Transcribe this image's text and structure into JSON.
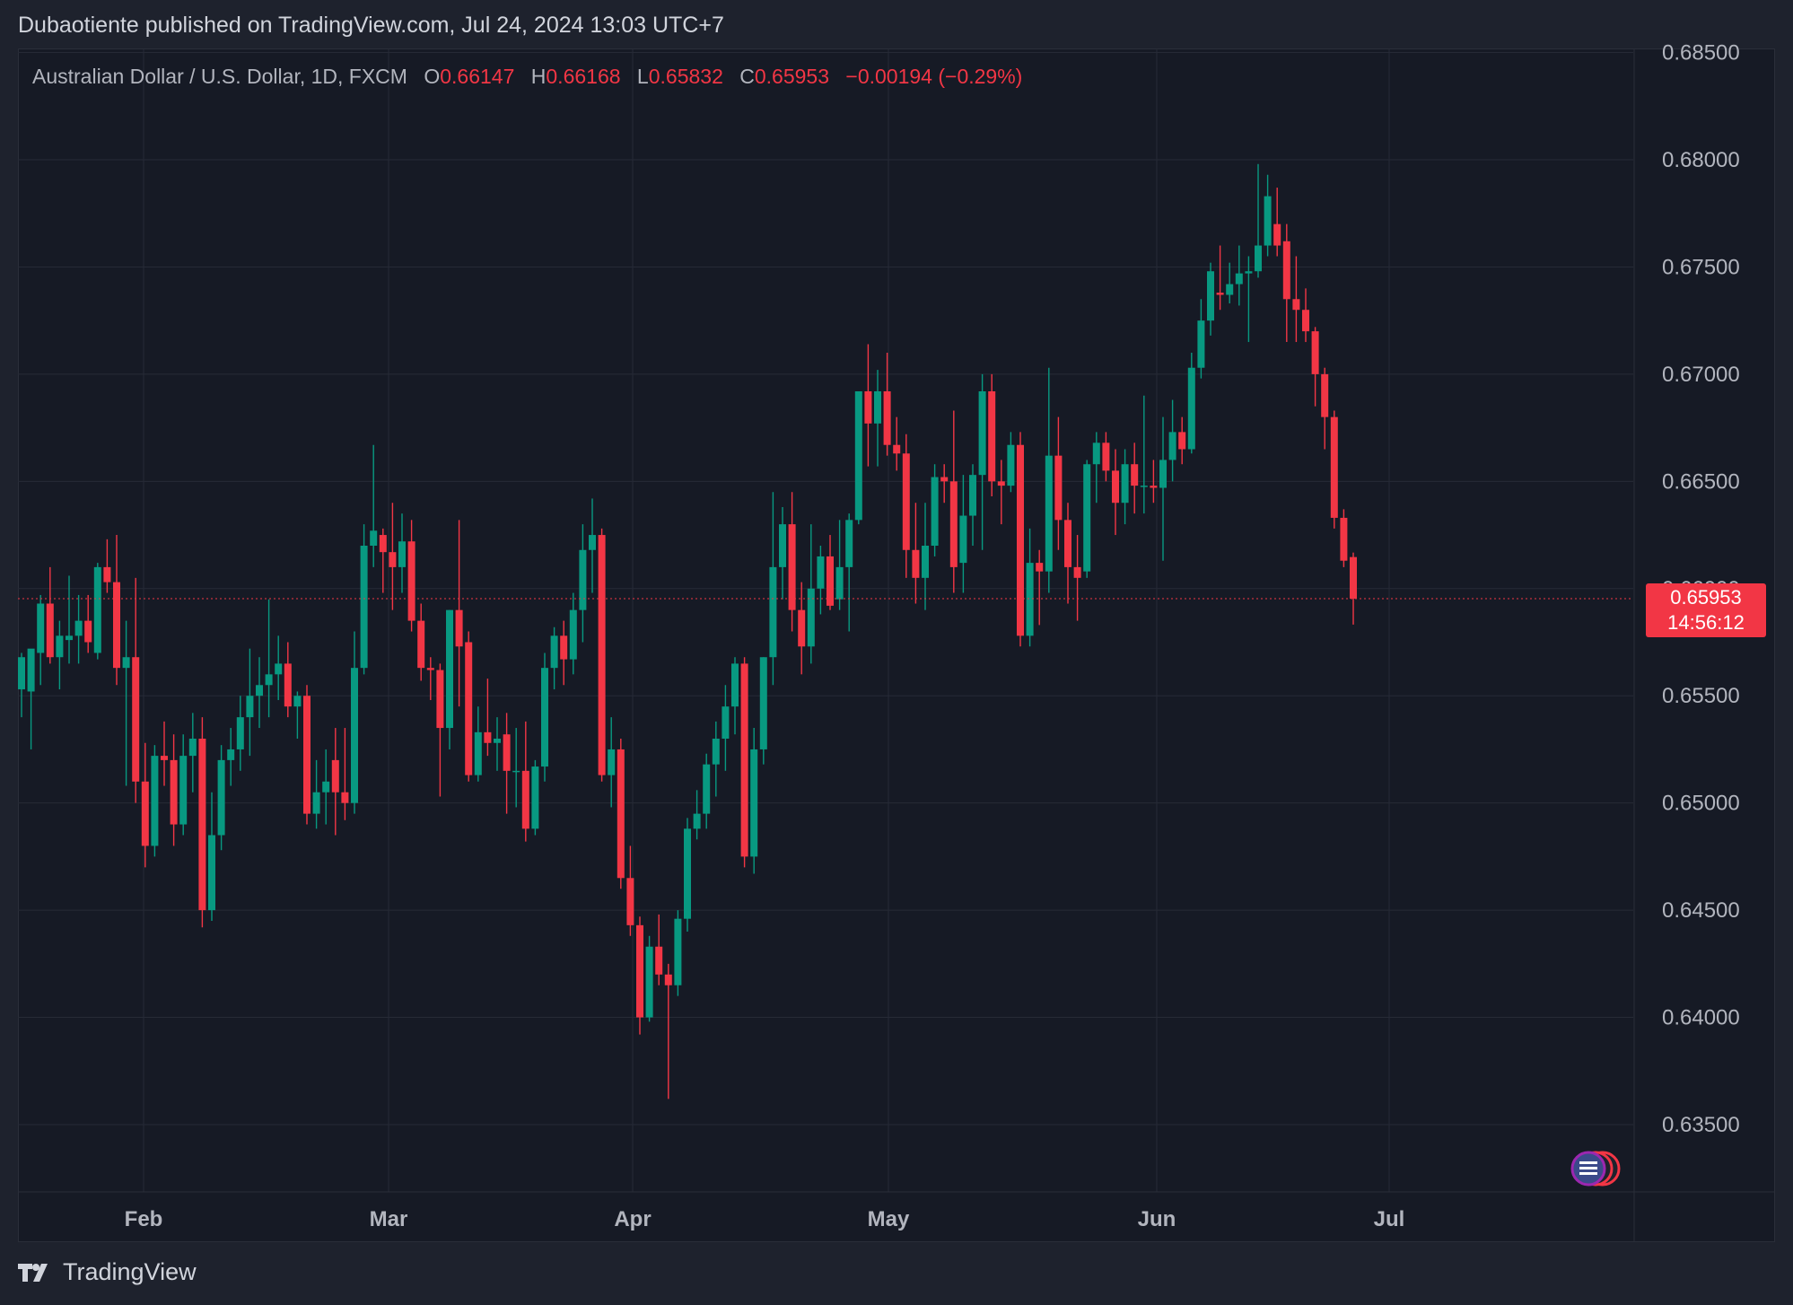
{
  "header": {
    "published_by": "Dubaotiente published on TradingView.com, Jul 24, 2024 13:03 UTC+7"
  },
  "legend": {
    "symbol": "Australian Dollar / U.S. Dollar, 1D, FXCM",
    "o_label": "O",
    "o_value": "0.66147",
    "h_label": "H",
    "h_value": "0.66168",
    "l_label": "L",
    "l_value": "0.65832",
    "c_label": "C",
    "c_value": "0.65953",
    "change": "−0.00194 (−0.29%)"
  },
  "last_price": {
    "value": "0.65953",
    "countdown": "14:56:12"
  },
  "footer": {
    "brand": "TradingView"
  },
  "colors": {
    "up": "#089981",
    "down": "#f23645",
    "grid": "#262a36",
    "background": "#161a25",
    "axis_text": "#b2b5be"
  },
  "chart_data": {
    "type": "candlestick",
    "title": "Australian Dollar / U.S. Dollar, 1D, FXCM",
    "x_axis_labels": [
      "Feb",
      "Mar",
      "Apr",
      "May",
      "Jun",
      "Jul"
    ],
    "y_ticks": [
      "0.68500",
      "0.68000",
      "0.67500",
      "0.67000",
      "0.66500",
      "0.66000",
      "0.65500",
      "0.65000",
      "0.64500",
      "0.64000",
      "0.63500"
    ],
    "ylim": [
      0.6325,
      0.6862
    ],
    "last_close": 0.65953,
    "grid": true,
    "ohlc": [
      {
        "o": 0.6553,
        "h": 0.657,
        "l": 0.654,
        "c": 0.6568
      },
      {
        "o": 0.6552,
        "h": 0.657,
        "l": 0.6525,
        "c": 0.6572
      },
      {
        "o": 0.657,
        "h": 0.6597,
        "l": 0.6555,
        "c": 0.6593
      },
      {
        "o": 0.6593,
        "h": 0.661,
        "l": 0.6565,
        "c": 0.6568
      },
      {
        "o": 0.6568,
        "h": 0.6585,
        "l": 0.6553,
        "c": 0.6578
      },
      {
        "o": 0.6576,
        "h": 0.6606,
        "l": 0.6565,
        "c": 0.6578
      },
      {
        "o": 0.6578,
        "h": 0.6597,
        "l": 0.6565,
        "c": 0.6585
      },
      {
        "o": 0.6585,
        "h": 0.6597,
        "l": 0.657,
        "c": 0.6575
      },
      {
        "o": 0.657,
        "h": 0.6612,
        "l": 0.6567,
        "c": 0.661
      },
      {
        "o": 0.661,
        "h": 0.6623,
        "l": 0.6598,
        "c": 0.6603
      },
      {
        "o": 0.6603,
        "h": 0.6625,
        "l": 0.6555,
        "c": 0.6563
      },
      {
        "o": 0.6563,
        "h": 0.6585,
        "l": 0.6508,
        "c": 0.6568
      },
      {
        "o": 0.6568,
        "h": 0.6605,
        "l": 0.65,
        "c": 0.651
      },
      {
        "o": 0.651,
        "h": 0.6528,
        "l": 0.647,
        "c": 0.648
      },
      {
        "o": 0.648,
        "h": 0.6527,
        "l": 0.6475,
        "c": 0.6522
      },
      {
        "o": 0.6522,
        "h": 0.6538,
        "l": 0.6508,
        "c": 0.652
      },
      {
        "o": 0.652,
        "h": 0.6532,
        "l": 0.648,
        "c": 0.649
      },
      {
        "o": 0.649,
        "h": 0.6532,
        "l": 0.6485,
        "c": 0.6522
      },
      {
        "o": 0.6522,
        "h": 0.6542,
        "l": 0.6505,
        "c": 0.653
      },
      {
        "o": 0.653,
        "h": 0.654,
        "l": 0.6442,
        "c": 0.645
      },
      {
        "o": 0.645,
        "h": 0.6505,
        "l": 0.6445,
        "c": 0.6485
      },
      {
        "o": 0.6485,
        "h": 0.6527,
        "l": 0.6478,
        "c": 0.652
      },
      {
        "o": 0.652,
        "h": 0.6535,
        "l": 0.6508,
        "c": 0.6525
      },
      {
        "o": 0.6525,
        "h": 0.655,
        "l": 0.6515,
        "c": 0.654
      },
      {
        "o": 0.654,
        "h": 0.6572,
        "l": 0.6522,
        "c": 0.655
      },
      {
        "o": 0.655,
        "h": 0.6568,
        "l": 0.6535,
        "c": 0.6555
      },
      {
        "o": 0.6555,
        "h": 0.6595,
        "l": 0.654,
        "c": 0.656
      },
      {
        "o": 0.656,
        "h": 0.6578,
        "l": 0.6548,
        "c": 0.6565
      },
      {
        "o": 0.6565,
        "h": 0.6575,
        "l": 0.654,
        "c": 0.6545
      },
      {
        "o": 0.6545,
        "h": 0.6552,
        "l": 0.653,
        "c": 0.655
      },
      {
        "o": 0.655,
        "h": 0.6555,
        "l": 0.649,
        "c": 0.6495
      },
      {
        "o": 0.6495,
        "h": 0.652,
        "l": 0.6488,
        "c": 0.6505
      },
      {
        "o": 0.6505,
        "h": 0.6525,
        "l": 0.649,
        "c": 0.651
      },
      {
        "o": 0.652,
        "h": 0.6535,
        "l": 0.6485,
        "c": 0.6505
      },
      {
        "o": 0.6505,
        "h": 0.6535,
        "l": 0.6492,
        "c": 0.65
      },
      {
        "o": 0.65,
        "h": 0.658,
        "l": 0.6495,
        "c": 0.6563
      },
      {
        "o": 0.6563,
        "h": 0.663,
        "l": 0.656,
        "c": 0.662
      },
      {
        "o": 0.662,
        "h": 0.6667,
        "l": 0.661,
        "c": 0.6627
      },
      {
        "o": 0.6625,
        "h": 0.6628,
        "l": 0.6598,
        "c": 0.6617
      },
      {
        "o": 0.6617,
        "h": 0.664,
        "l": 0.659,
        "c": 0.661
      },
      {
        "o": 0.661,
        "h": 0.6635,
        "l": 0.6598,
        "c": 0.6622
      },
      {
        "o": 0.6622,
        "h": 0.6632,
        "l": 0.658,
        "c": 0.6585
      },
      {
        "o": 0.6585,
        "h": 0.6593,
        "l": 0.6557,
        "c": 0.6563
      },
      {
        "o": 0.6563,
        "h": 0.6568,
        "l": 0.6548,
        "c": 0.6562
      },
      {
        "o": 0.6562,
        "h": 0.6565,
        "l": 0.6503,
        "c": 0.6535
      },
      {
        "o": 0.6535,
        "h": 0.659,
        "l": 0.6525,
        "c": 0.659
      },
      {
        "o": 0.659,
        "h": 0.6632,
        "l": 0.6545,
        "c": 0.6573
      },
      {
        "o": 0.6575,
        "h": 0.658,
        "l": 0.651,
        "c": 0.6513
      },
      {
        "o": 0.6513,
        "h": 0.6545,
        "l": 0.651,
        "c": 0.6533
      },
      {
        "o": 0.6533,
        "h": 0.6558,
        "l": 0.6522,
        "c": 0.6528
      },
      {
        "o": 0.6528,
        "h": 0.654,
        "l": 0.6515,
        "c": 0.653
      },
      {
        "o": 0.6532,
        "h": 0.6542,
        "l": 0.6495,
        "c": 0.6515
      },
      {
        "o": 0.6515,
        "h": 0.6535,
        "l": 0.6498,
        "c": 0.6515
      },
      {
        "o": 0.6515,
        "h": 0.6538,
        "l": 0.6482,
        "c": 0.6488
      },
      {
        "o": 0.6488,
        "h": 0.652,
        "l": 0.6485,
        "c": 0.6517
      },
      {
        "o": 0.6517,
        "h": 0.657,
        "l": 0.651,
        "c": 0.6563
      },
      {
        "o": 0.6563,
        "h": 0.6582,
        "l": 0.6553,
        "c": 0.6578
      },
      {
        "o": 0.6578,
        "h": 0.6585,
        "l": 0.6555,
        "c": 0.6567
      },
      {
        "o": 0.6567,
        "h": 0.6598,
        "l": 0.656,
        "c": 0.659
      },
      {
        "o": 0.659,
        "h": 0.663,
        "l": 0.6575,
        "c": 0.6618
      },
      {
        "o": 0.6618,
        "h": 0.6642,
        "l": 0.6598,
        "c": 0.6625
      },
      {
        "o": 0.6625,
        "h": 0.6628,
        "l": 0.651,
        "c": 0.6513
      },
      {
        "o": 0.6513,
        "h": 0.654,
        "l": 0.6498,
        "c": 0.6525
      },
      {
        "o": 0.6525,
        "h": 0.653,
        "l": 0.646,
        "c": 0.6465
      },
      {
        "o": 0.6465,
        "h": 0.648,
        "l": 0.6438,
        "c": 0.6443
      },
      {
        "o": 0.6443,
        "h": 0.6447,
        "l": 0.6392,
        "c": 0.64
      },
      {
        "o": 0.64,
        "h": 0.6438,
        "l": 0.6398,
        "c": 0.6433
      },
      {
        "o": 0.6433,
        "h": 0.6448,
        "l": 0.6415,
        "c": 0.642
      },
      {
        "o": 0.642,
        "h": 0.6425,
        "l": 0.6362,
        "c": 0.6415
      },
      {
        "o": 0.6415,
        "h": 0.645,
        "l": 0.641,
        "c": 0.6446
      },
      {
        "o": 0.6446,
        "h": 0.6493,
        "l": 0.644,
        "c": 0.6488
      },
      {
        "o": 0.6488,
        "h": 0.6506,
        "l": 0.6483,
        "c": 0.6495
      },
      {
        "o": 0.6495,
        "h": 0.6523,
        "l": 0.6488,
        "c": 0.6518
      },
      {
        "o": 0.6518,
        "h": 0.6538,
        "l": 0.6503,
        "c": 0.653
      },
      {
        "o": 0.653,
        "h": 0.6555,
        "l": 0.6515,
        "c": 0.6545
      },
      {
        "o": 0.6545,
        "h": 0.6568,
        "l": 0.6532,
        "c": 0.6565
      },
      {
        "o": 0.6565,
        "h": 0.6568,
        "l": 0.647,
        "c": 0.6475
      },
      {
        "o": 0.6475,
        "h": 0.6535,
        "l": 0.6467,
        "c": 0.6525
      },
      {
        "o": 0.6525,
        "h": 0.6568,
        "l": 0.6518,
        "c": 0.6568
      },
      {
        "o": 0.6568,
        "h": 0.6645,
        "l": 0.6555,
        "c": 0.661
      },
      {
        "o": 0.661,
        "h": 0.6638,
        "l": 0.6595,
        "c": 0.663
      },
      {
        "o": 0.663,
        "h": 0.6645,
        "l": 0.658,
        "c": 0.659
      },
      {
        "o": 0.659,
        "h": 0.6603,
        "l": 0.656,
        "c": 0.6573
      },
      {
        "o": 0.6573,
        "h": 0.663,
        "l": 0.6565,
        "c": 0.66
      },
      {
        "o": 0.66,
        "h": 0.662,
        "l": 0.6588,
        "c": 0.6615
      },
      {
        "o": 0.6615,
        "h": 0.6625,
        "l": 0.659,
        "c": 0.6592
      },
      {
        "o": 0.6595,
        "h": 0.6632,
        "l": 0.659,
        "c": 0.661
      },
      {
        "o": 0.661,
        "h": 0.6635,
        "l": 0.658,
        "c": 0.6632
      },
      {
        "o": 0.6632,
        "h": 0.6692,
        "l": 0.663,
        "c": 0.6692
      },
      {
        "o": 0.6692,
        "h": 0.6714,
        "l": 0.6657,
        "c": 0.6677
      },
      {
        "o": 0.6677,
        "h": 0.6702,
        "l": 0.6657,
        "c": 0.6692
      },
      {
        "o": 0.6692,
        "h": 0.671,
        "l": 0.6662,
        "c": 0.6667
      },
      {
        "o": 0.6667,
        "h": 0.668,
        "l": 0.6655,
        "c": 0.6663
      },
      {
        "o": 0.6663,
        "h": 0.6672,
        "l": 0.6605,
        "c": 0.6618
      },
      {
        "o": 0.6618,
        "h": 0.664,
        "l": 0.6593,
        "c": 0.6605
      },
      {
        "o": 0.6605,
        "h": 0.664,
        "l": 0.659,
        "c": 0.662
      },
      {
        "o": 0.662,
        "h": 0.6658,
        "l": 0.6615,
        "c": 0.6652
      },
      {
        "o": 0.6652,
        "h": 0.6658,
        "l": 0.664,
        "c": 0.665
      },
      {
        "o": 0.665,
        "h": 0.6683,
        "l": 0.6598,
        "c": 0.661
      },
      {
        "o": 0.6612,
        "h": 0.6653,
        "l": 0.6598,
        "c": 0.6634
      },
      {
        "o": 0.6634,
        "h": 0.6658,
        "l": 0.662,
        "c": 0.6653
      },
      {
        "o": 0.6653,
        "h": 0.67,
        "l": 0.6618,
        "c": 0.6692
      },
      {
        "o": 0.6692,
        "h": 0.67,
        "l": 0.6643,
        "c": 0.665
      },
      {
        "o": 0.665,
        "h": 0.666,
        "l": 0.663,
        "c": 0.6648
      },
      {
        "o": 0.6648,
        "h": 0.6673,
        "l": 0.6645,
        "c": 0.6667
      },
      {
        "o": 0.6667,
        "h": 0.6673,
        "l": 0.6573,
        "c": 0.6578
      },
      {
        "o": 0.6578,
        "h": 0.6628,
        "l": 0.6573,
        "c": 0.6612
      },
      {
        "o": 0.6612,
        "h": 0.6618,
        "l": 0.6583,
        "c": 0.6608
      },
      {
        "o": 0.6608,
        "h": 0.6703,
        "l": 0.6598,
        "c": 0.6662
      },
      {
        "o": 0.6662,
        "h": 0.668,
        "l": 0.6618,
        "c": 0.6632
      },
      {
        "o": 0.6632,
        "h": 0.664,
        "l": 0.6593,
        "c": 0.661
      },
      {
        "o": 0.661,
        "h": 0.6625,
        "l": 0.6585,
        "c": 0.6605
      },
      {
        "o": 0.6608,
        "h": 0.666,
        "l": 0.6605,
        "c": 0.6658
      },
      {
        "o": 0.6658,
        "h": 0.6673,
        "l": 0.664,
        "c": 0.6668
      },
      {
        "o": 0.6668,
        "h": 0.6673,
        "l": 0.665,
        "c": 0.6655
      },
      {
        "o": 0.6655,
        "h": 0.6665,
        "l": 0.6625,
        "c": 0.664
      },
      {
        "o": 0.664,
        "h": 0.6665,
        "l": 0.663,
        "c": 0.6658
      },
      {
        "o": 0.6658,
        "h": 0.6668,
        "l": 0.6635,
        "c": 0.6648
      },
      {
        "o": 0.6648,
        "h": 0.669,
        "l": 0.6635,
        "c": 0.6648
      },
      {
        "o": 0.6648,
        "h": 0.666,
        "l": 0.664,
        "c": 0.6647
      },
      {
        "o": 0.6647,
        "h": 0.668,
        "l": 0.6613,
        "c": 0.666
      },
      {
        "o": 0.666,
        "h": 0.6688,
        "l": 0.665,
        "c": 0.6673
      },
      {
        "o": 0.6673,
        "h": 0.668,
        "l": 0.6658,
        "c": 0.6665
      },
      {
        "o": 0.6665,
        "h": 0.671,
        "l": 0.6663,
        "c": 0.6703
      },
      {
        "o": 0.6703,
        "h": 0.6735,
        "l": 0.6698,
        "c": 0.6725
      },
      {
        "o": 0.6725,
        "h": 0.6752,
        "l": 0.6718,
        "c": 0.6748
      },
      {
        "o": 0.6738,
        "h": 0.676,
        "l": 0.673,
        "c": 0.6737
      },
      {
        "o": 0.6737,
        "h": 0.6752,
        "l": 0.6733,
        "c": 0.6742
      },
      {
        "o": 0.6742,
        "h": 0.676,
        "l": 0.6732,
        "c": 0.6747
      },
      {
        "o": 0.6747,
        "h": 0.6755,
        "l": 0.6715,
        "c": 0.6748
      },
      {
        "o": 0.6748,
        "h": 0.6798,
        "l": 0.6745,
        "c": 0.676
      },
      {
        "o": 0.676,
        "h": 0.6793,
        "l": 0.6755,
        "c": 0.6783
      },
      {
        "o": 0.677,
        "h": 0.6787,
        "l": 0.6755,
        "c": 0.676
      },
      {
        "o": 0.6762,
        "h": 0.677,
        "l": 0.6715,
        "c": 0.6735
      },
      {
        "o": 0.6735,
        "h": 0.6755,
        "l": 0.6715,
        "c": 0.673
      },
      {
        "o": 0.673,
        "h": 0.674,
        "l": 0.6715,
        "c": 0.672
      },
      {
        "o": 0.672,
        "h": 0.6722,
        "l": 0.6685,
        "c": 0.67
      },
      {
        "o": 0.67,
        "h": 0.6703,
        "l": 0.6665,
        "c": 0.668
      },
      {
        "o": 0.668,
        "h": 0.6683,
        "l": 0.6628,
        "c": 0.6633
      },
      {
        "o": 0.6633,
        "h": 0.6637,
        "l": 0.661,
        "c": 0.6613
      },
      {
        "o": 0.66147,
        "h": 0.66168,
        "l": 0.65832,
        "c": 0.65953
      }
    ]
  }
}
